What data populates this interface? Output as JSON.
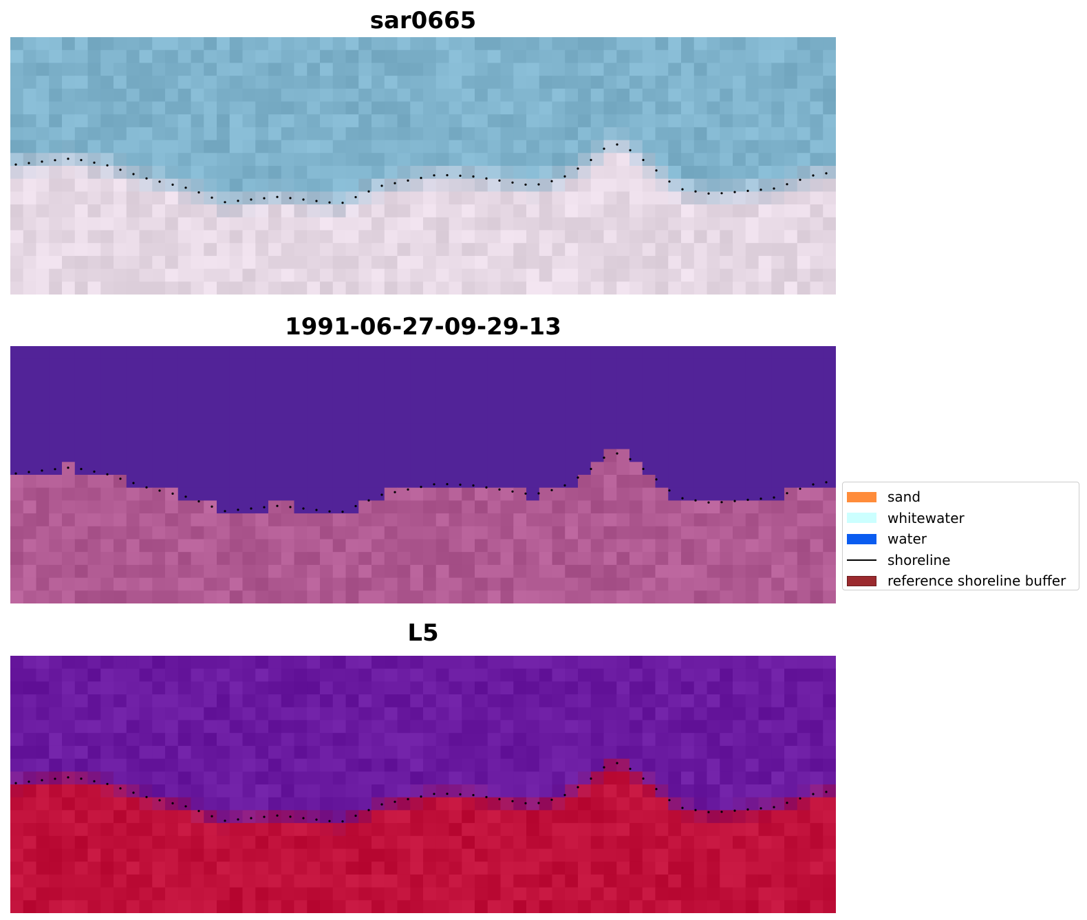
{
  "panels": [
    {
      "title": "sar0665"
    },
    {
      "title": "1991-06-27-09-29-13"
    },
    {
      "title": "L5"
    }
  ],
  "legend": {
    "items": [
      {
        "label": "sand",
        "color": "#ff8c3a",
        "kind": "patch"
      },
      {
        "label": "whitewater",
        "color": "#ccffff",
        "kind": "patch"
      },
      {
        "label": "water",
        "color": "#0a5cf0",
        "kind": "patch"
      },
      {
        "label": "shoreline",
        "color": "#000000",
        "kind": "line"
      },
      {
        "label": "reference shoreline buffer",
        "color": "#9b2a2e",
        "kind": "patch"
      }
    ]
  },
  "colors": {
    "panel1_water": "#7fb3cc",
    "panel1_land": "#e6d8e4",
    "panel2_water": "#522398",
    "panel2_land": "#b05a92",
    "panel3_water": "#6a1aa0",
    "panel3_land": "#c0103a",
    "shoreline_dots": "#000000"
  }
}
